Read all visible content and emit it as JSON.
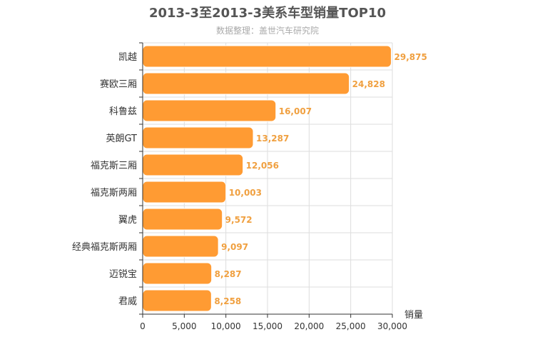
{
  "chart_data": {
    "type": "bar",
    "orientation": "horizontal",
    "title": "2013-3至2013-3美系车型销量TOP10",
    "subtitle": "数据整理：盖世汽车研究院",
    "xlabel": "销量",
    "ylabel": "",
    "categories": [
      "凯越",
      "赛欧三厢",
      "科鲁兹",
      "英朗GT",
      "福克斯三厢",
      "福克斯两厢",
      "翼虎",
      "经典福克斯两厢",
      "迈锐宝",
      "君威"
    ],
    "values": [
      29875,
      24828,
      16007,
      13287,
      12056,
      10003,
      9572,
      9097,
      8287,
      8258
    ],
    "value_labels": [
      "29,875",
      "24,828",
      "16,007",
      "13,287",
      "12,056",
      "10,003",
      "9,572",
      "9,097",
      "8,287",
      "8,258"
    ],
    "xlim": [
      0,
      30000
    ],
    "xticks": [
      0,
      5000,
      10000,
      15000,
      20000,
      25000,
      30000
    ],
    "xtick_labels": [
      "0",
      "5,000",
      "10,000",
      "15,000",
      "20,000",
      "25,000",
      "30,000"
    ],
    "grid": true,
    "bar_color": "#ff9b33",
    "value_label_color": "#f0a040",
    "grid_color": "#dddddd"
  }
}
